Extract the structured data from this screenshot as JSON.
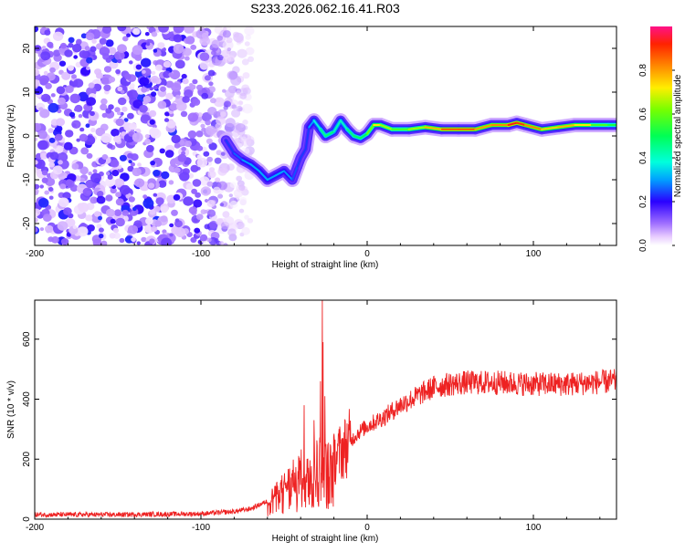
{
  "title": "S233.2026.062.16.41.R03",
  "chart_data": [
    {
      "type": "heatmap",
      "name": "spectrogram",
      "xlabel": "Height of straight line (km)",
      "ylabel": "Frequency (Hz)",
      "xlim": [
        -200,
        150
      ],
      "ylim": [
        -25,
        25
      ],
      "xticks": [
        -200,
        -100,
        0,
        100
      ],
      "yticks": [
        -20,
        -10,
        0,
        10,
        20
      ],
      "ridge": [
        {
          "x": -85,
          "y": -1,
          "a": 0.25
        },
        {
          "x": -80,
          "y": -4,
          "a": 0.22
        },
        {
          "x": -75,
          "y": -5.5,
          "a": 0.3
        },
        {
          "x": -70,
          "y": -6.5,
          "a": 0.3
        },
        {
          "x": -65,
          "y": -8,
          "a": 0.32
        },
        {
          "x": -60,
          "y": -10,
          "a": 0.3
        },
        {
          "x": -55,
          "y": -9,
          "a": 0.32
        },
        {
          "x": -50,
          "y": -8,
          "a": 0.3
        },
        {
          "x": -45,
          "y": -10,
          "a": 0.28
        },
        {
          "x": -42,
          "y": -7,
          "a": 0.22
        },
        {
          "x": -40,
          "y": -5,
          "a": 0.25
        },
        {
          "x": -37,
          "y": -3,
          "a": 0.22
        },
        {
          "x": -35,
          "y": 2,
          "a": 0.25
        },
        {
          "x": -32,
          "y": 3.5,
          "a": 0.35
        },
        {
          "x": -28,
          "y": 1.5,
          "a": 0.4
        },
        {
          "x": -25,
          "y": 0,
          "a": 0.5
        },
        {
          "x": -20,
          "y": 1,
          "a": 0.45
        },
        {
          "x": -16,
          "y": 3.5,
          "a": 0.38
        },
        {
          "x": -12,
          "y": 1.5,
          "a": 0.42
        },
        {
          "x": -8,
          "y": 0,
          "a": 0.5
        },
        {
          "x": -4,
          "y": -0.5,
          "a": 0.48
        },
        {
          "x": 0,
          "y": 0.5,
          "a": 0.52
        },
        {
          "x": 4,
          "y": 2.5,
          "a": 0.7
        },
        {
          "x": 8,
          "y": 2.5,
          "a": 0.75
        },
        {
          "x": 15,
          "y": 1.5,
          "a": 0.55
        },
        {
          "x": 25,
          "y": 1.5,
          "a": 0.6
        },
        {
          "x": 35,
          "y": 2,
          "a": 0.7
        },
        {
          "x": 45,
          "y": 1.5,
          "a": 0.85
        },
        {
          "x": 55,
          "y": 1.5,
          "a": 0.9
        },
        {
          "x": 65,
          "y": 1.5,
          "a": 0.85
        },
        {
          "x": 75,
          "y": 2.5,
          "a": 0.75
        },
        {
          "x": 85,
          "y": 2.5,
          "a": 0.9
        },
        {
          "x": 90,
          "y": 3,
          "a": 0.95
        },
        {
          "x": 95,
          "y": 2.5,
          "a": 0.85
        },
        {
          "x": 105,
          "y": 1.5,
          "a": 0.8
        },
        {
          "x": 115,
          "y": 2,
          "a": 0.7
        },
        {
          "x": 125,
          "y": 2.5,
          "a": 0.85
        },
        {
          "x": 135,
          "y": 2.5,
          "a": 0.6
        },
        {
          "x": 145,
          "y": 2.5,
          "a": 0.55
        },
        {
          "x": 150,
          "y": 2.5,
          "a": 0.5
        }
      ],
      "noise_region": {
        "xmin": -200,
        "xmax": -70,
        "level_range": [
          0.02,
          0.15
        ]
      }
    },
    {
      "type": "colorbar",
      "label": "Normalized spectral amplitude",
      "range": [
        0,
        1
      ],
      "ticks": [
        0.0,
        0.2,
        0.4,
        0.6,
        0.8
      ],
      "tick_labels": [
        "0.0",
        "0.2",
        "0.4",
        "0.6",
        "0.8"
      ]
    },
    {
      "type": "line",
      "name": "snr",
      "xlabel": "Height of straight line (km)",
      "ylabel": "SNR (10 * v/v)",
      "xlim": [
        -200,
        150
      ],
      "ylim": [
        0,
        730
      ],
      "xticks": [
        -200,
        -100,
        0,
        100
      ],
      "yticks": [
        0,
        200,
        400,
        600
      ],
      "color": "#ee2222",
      "envelope": [
        {
          "x": -200,
          "y": 15
        },
        {
          "x": -150,
          "y": 15
        },
        {
          "x": -100,
          "y": 18
        },
        {
          "x": -80,
          "y": 25
        },
        {
          "x": -70,
          "y": 35
        },
        {
          "x": -60,
          "y": 60
        },
        {
          "x": -50,
          "y": 110
        },
        {
          "x": -40,
          "y": 160
        },
        {
          "x": -30,
          "y": 200
        },
        {
          "x": -25,
          "y": 180
        },
        {
          "x": -20,
          "y": 200
        },
        {
          "x": -15,
          "y": 230
        },
        {
          "x": -10,
          "y": 260
        },
        {
          "x": -5,
          "y": 290
        },
        {
          "x": 0,
          "y": 310
        },
        {
          "x": 10,
          "y": 340
        },
        {
          "x": 20,
          "y": 380
        },
        {
          "x": 30,
          "y": 410
        },
        {
          "x": 40,
          "y": 440
        },
        {
          "x": 50,
          "y": 450
        },
        {
          "x": 60,
          "y": 455
        },
        {
          "x": 80,
          "y": 455
        },
        {
          "x": 100,
          "y": 450
        },
        {
          "x": 120,
          "y": 450
        },
        {
          "x": 150,
          "y": 460
        }
      ],
      "spikes": [
        {
          "x": -27,
          "y": 730
        },
        {
          "x": -26.5,
          "y": 590
        },
        {
          "x": -28,
          "y": 460
        },
        {
          "x": -25.5,
          "y": 410
        },
        {
          "x": -38,
          "y": 380
        },
        {
          "x": -32,
          "y": 330
        }
      ],
      "noise_amplitude": 0.09
    }
  ]
}
